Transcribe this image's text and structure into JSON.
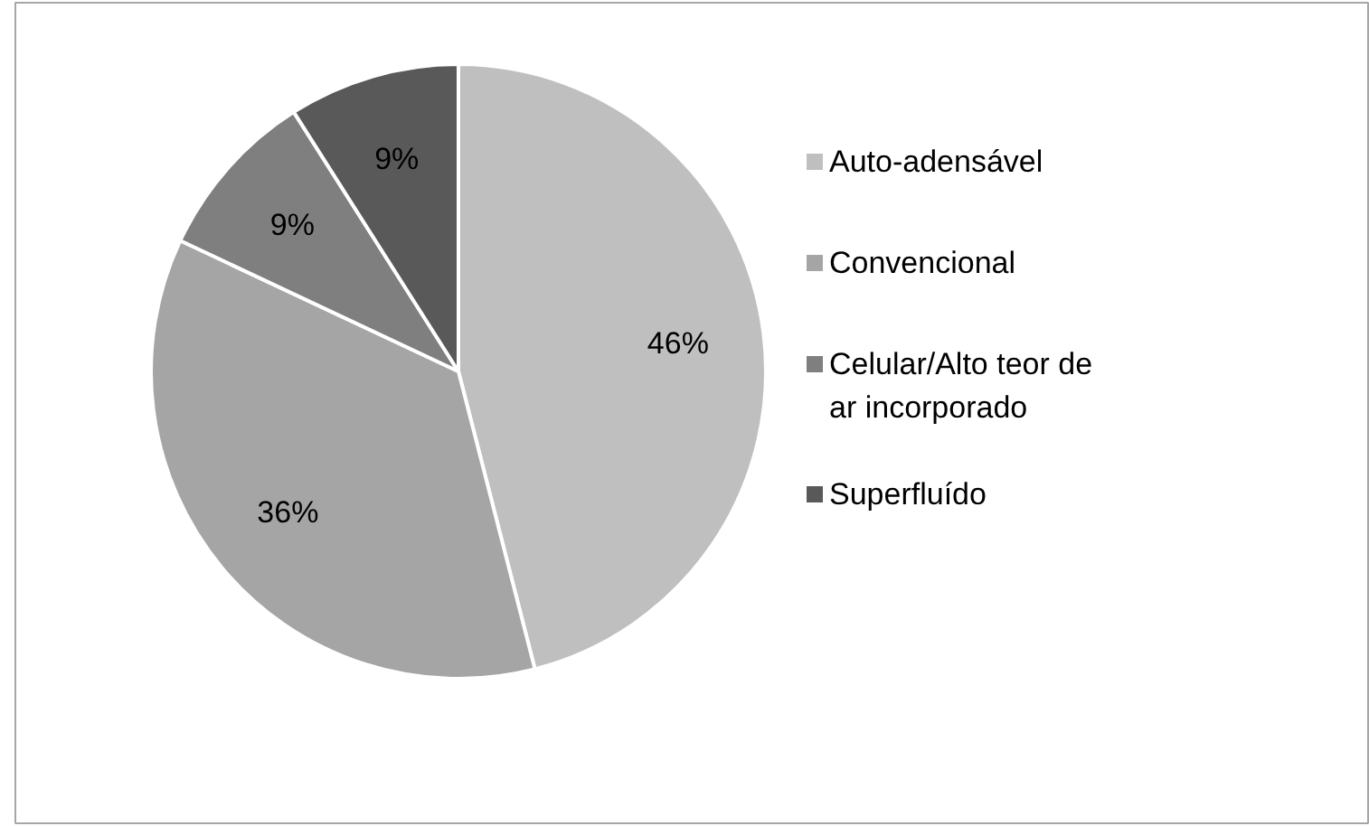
{
  "chart_data": {
    "type": "pie",
    "categories": [
      "Auto-adensável",
      "Convencional",
      "Celular/Alto teor de ar incorporado",
      "Superfluído"
    ],
    "values": [
      46,
      36,
      9,
      9
    ],
    "colors": [
      "#bfbfbf",
      "#a5a5a5",
      "#7f7f7f",
      "#595959"
    ],
    "value_labels": [
      "46%",
      "36%",
      "9%",
      "9%"
    ],
    "legend": "right"
  }
}
